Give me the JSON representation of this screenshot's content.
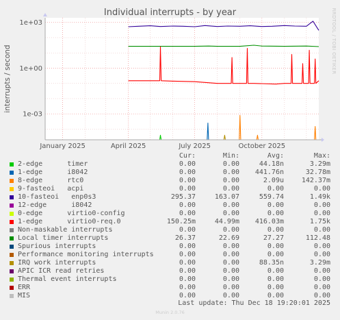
{
  "title": "Individual interrupts - by year",
  "watermark": "RRDTOOL / TOBI OETIKER",
  "footer": "Munin 2.0.76",
  "last_update": "Last update: Thu Dec 18 19:20:01 2025",
  "legend_headers": {
    "cur": "Cur:",
    "min": "Min:",
    "avg": "Avg:",
    "max": "Max:"
  },
  "legend": [
    {
      "name": "2-edge      timer",
      "color": "#00cc00",
      "cur": "0.00",
      "min": "0.00",
      "avg": "44.18n",
      "max": "3.29m"
    },
    {
      "name": "1-edge      i8042",
      "color": "#0066b3",
      "cur": "0.00",
      "min": "0.00",
      "avg": "441.76n",
      "max": "32.78m"
    },
    {
      "name": "8-edge      rtc0",
      "color": "#ff8000",
      "cur": "0.00",
      "min": "0.00",
      "avg": "2.09u",
      "max": "142.37m"
    },
    {
      "name": "9-fasteoi   acpi",
      "color": "#ffcc00",
      "cur": "0.00",
      "min": "0.00",
      "avg": "0.00",
      "max": "0.00"
    },
    {
      "name": "10-fasteoi   enp0s3",
      "color": "#330099",
      "cur": "295.37",
      "min": "163.07",
      "avg": "559.74",
      "max": "1.49k"
    },
    {
      "name": "12-edge      i8042",
      "color": "#990099",
      "cur": "0.00",
      "min": "0.00",
      "avg": "0.00",
      "max": "0.00"
    },
    {
      "name": "0-edge      virtio0-config",
      "color": "#ccff00",
      "cur": "0.00",
      "min": "0.00",
      "avg": "0.00",
      "max": "0.00"
    },
    {
      "name": "1-edge      virtio0-req.0",
      "color": "#ff0000",
      "cur": "150.25m",
      "min": "44.99m",
      "avg": "416.03m",
      "max": "1.75k"
    },
    {
      "name": "Non-maskable interrupts",
      "color": "#808080",
      "cur": "0.00",
      "min": "0.00",
      "avg": "0.00",
      "max": "0.00"
    },
    {
      "name": "Local timer interrupts",
      "color": "#008f00",
      "cur": "26.37",
      "min": "22.69",
      "avg": "27.27",
      "max": "112.48"
    },
    {
      "name": "Spurious interrupts",
      "color": "#00487d",
      "cur": "0.00",
      "min": "0.00",
      "avg": "0.00",
      "max": "0.00"
    },
    {
      "name": "Performance monitoring interrupts",
      "color": "#b35a00",
      "cur": "0.00",
      "min": "0.00",
      "avg": "0.00",
      "max": "0.00"
    },
    {
      "name": "IRQ work interrupts",
      "color": "#b38f00",
      "cur": "0.00",
      "min": "0.00",
      "avg": "88.35n",
      "max": "3.29m"
    },
    {
      "name": "APIC ICR read retries",
      "color": "#6b006b",
      "cur": "0.00",
      "min": "0.00",
      "avg": "0.00",
      "max": "0.00"
    },
    {
      "name": "Thermal event interrupts",
      "color": "#8fb300",
      "cur": "0.00",
      "min": "0.00",
      "avg": "0.00",
      "max": "0.00"
    },
    {
      "name": "ERR",
      "color": "#b30000",
      "cur": "0.00",
      "min": "0.00",
      "avg": "0.00",
      "max": "0.00"
    },
    {
      "name": "MIS",
      "color": "#bebebe",
      "cur": "0.00",
      "min": "0.00",
      "avg": "0.00",
      "max": "0.00"
    }
  ],
  "chart_data": {
    "type": "line",
    "title": "Individual interrupts - by year",
    "ylabel": "interrupts / second",
    "yscale": "log",
    "ylim": [
      2e-05,
      2000
    ],
    "y_ticks": [
      {
        "value": 1000,
        "label": "1e+03"
      },
      {
        "value": 1,
        "label": "1e+00"
      },
      {
        "value": 0.001,
        "label": "1e-03"
      }
    ],
    "x_domain": [
      "2024-12-08",
      "2025-12-18"
    ],
    "x_ticks": [
      {
        "date": "2025-01-01",
        "label": "January 2025"
      },
      {
        "date": "2025-04-01",
        "label": "April 2025"
      },
      {
        "date": "2025-07-01",
        "label": "July 2025"
      },
      {
        "date": "2025-10-01",
        "label": "October 2025"
      }
    ],
    "grid": true,
    "series": [
      {
        "name": "10-fasteoi   enp0s3",
        "color": "#330099",
        "x": [
          "2025-04-01",
          "2025-04-15",
          "2025-05-01",
          "2025-05-15",
          "2025-06-01",
          "2025-06-15",
          "2025-07-01",
          "2025-07-15",
          "2025-08-01",
          "2025-08-15",
          "2025-09-01",
          "2025-09-15",
          "2025-10-01",
          "2025-10-15",
          "2025-11-01",
          "2025-11-15",
          "2025-12-01",
          "2025-12-10",
          "2025-12-18"
        ],
        "y": [
          520,
          560,
          600,
          540,
          580,
          560,
          520,
          620,
          540,
          580,
          560,
          600,
          540,
          560,
          620,
          580,
          560,
          1200,
          300
        ]
      },
      {
        "name": "Local timer interrupts",
        "color": "#008f00",
        "x": [
          "2025-04-01",
          "2025-05-01",
          "2025-06-01",
          "2025-07-01",
          "2025-07-20",
          "2025-08-01",
          "2025-09-01",
          "2025-09-20",
          "2025-10-01",
          "2025-11-01",
          "2025-12-01",
          "2025-12-18"
        ],
        "y": [
          27,
          27,
          27,
          27,
          28,
          27,
          27,
          32,
          28,
          27,
          28,
          26
        ]
      },
      {
        "name": "1-edge      virtio0-req.0",
        "color": "#ff0000",
        "x": [
          "2025-04-01",
          "2025-05-01",
          "2025-05-14",
          "2025-05-15",
          "2025-05-16",
          "2025-06-01",
          "2025-07-01",
          "2025-08-01",
          "2025-08-20",
          "2025-08-21",
          "2025-08-22",
          "2025-09-10",
          "2025-09-11",
          "2025-09-12",
          "2025-09-20",
          "2025-10-20",
          "2025-11-01",
          "2025-11-10",
          "2025-11-11",
          "2025-11-12",
          "2025-11-25",
          "2025-11-26",
          "2025-11-27",
          "2025-12-04",
          "2025-12-05",
          "2025-12-06",
          "2025-12-12",
          "2025-12-13",
          "2025-12-14",
          "2025-12-18"
        ],
        "y": [
          0.15,
          0.15,
          0.15,
          25,
          0.15,
          0.14,
          0.13,
          0.1,
          0.1,
          5,
          0.1,
          0.1,
          20,
          0.1,
          0.1,
          0.09,
          0.1,
          0.1,
          8,
          0.1,
          0.1,
          2,
          0.1,
          0.1,
          15,
          0.1,
          0.1,
          4,
          0.1,
          0.15
        ]
      },
      {
        "name": "2-edge      timer",
        "color": "#00cc00",
        "x": [
          "2025-05-14",
          "2025-05-15",
          "2025-05-16"
        ],
        "y": [
          2e-05,
          4e-05,
          2e-05
        ]
      },
      {
        "name": "1-edge      i8042",
        "color": "#0066b3",
        "x": [
          "2025-07-18",
          "2025-07-19",
          "2025-07-20"
        ],
        "y": [
          2e-05,
          0.00025,
          2e-05
        ]
      },
      {
        "name": "8-edge      rtc0",
        "color": "#ff8000",
        "x": [
          "2025-08-31",
          "2025-09-01",
          "2025-09-02",
          "2025-09-24",
          "2025-09-25",
          "2025-09-26",
          "2025-12-12",
          "2025-12-13",
          "2025-12-14"
        ],
        "y": [
          2e-05,
          0.0008,
          2e-05,
          2e-05,
          4e-05,
          2e-05,
          2e-05,
          0.00015,
          2e-05
        ]
      },
      {
        "name": "IRQ work interrupts",
        "color": "#b38f00",
        "x": [
          "2025-08-10",
          "2025-08-11",
          "2025-08-12"
        ],
        "y": [
          2e-05,
          4e-05,
          2e-05
        ]
      }
    ]
  }
}
